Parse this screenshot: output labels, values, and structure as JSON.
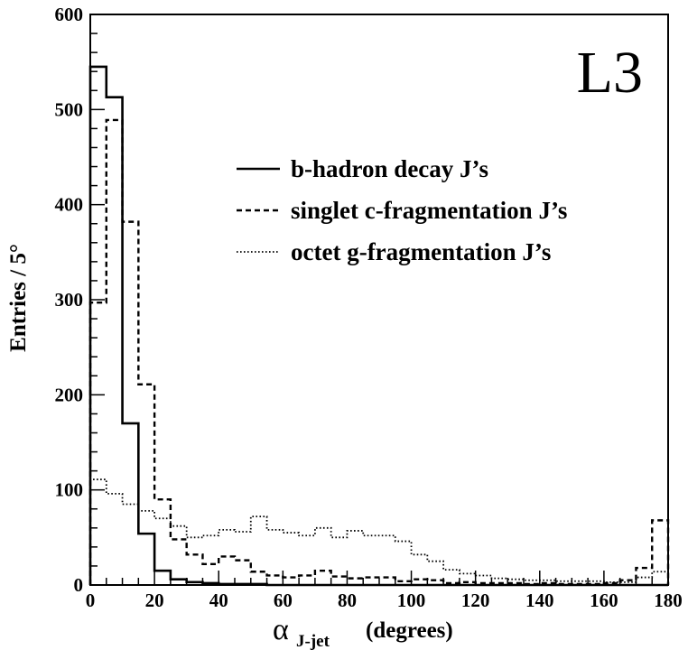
{
  "chart_data": {
    "type": "histogram",
    "label_mark": "L3",
    "ylabel": "Entries / 5°",
    "xlabel": {
      "symbol": "α",
      "subscript": "J-jet",
      "unit": "(degrees)"
    },
    "xlim": [
      0,
      180
    ],
    "ylim": [
      0,
      600
    ],
    "bin_width": 5,
    "x_ticks": [
      "0",
      "20",
      "40",
      "60",
      "80",
      "100",
      "120",
      "140",
      "160",
      "180"
    ],
    "y_ticks": [
      "0",
      "100",
      "200",
      "300",
      "400",
      "500",
      "600"
    ],
    "grid": false,
    "legend_position": "top-right",
    "series": [
      {
        "name": "b-hadron decay J’s",
        "line_style": "solid",
        "values": [
          545,
          513,
          170,
          54,
          15,
          6,
          3,
          2,
          1,
          1,
          1,
          0,
          0,
          0,
          0,
          0,
          0,
          0,
          0,
          0,
          0,
          0,
          0,
          0,
          0,
          0,
          0,
          0,
          0,
          0,
          0,
          0,
          0,
          0,
          0,
          0
        ]
      },
      {
        "name": "singlet c-fragmentation J’s",
        "line_style": "dashed",
        "values": [
          297,
          489,
          382,
          211,
          90,
          48,
          32,
          22,
          30,
          26,
          14,
          10,
          8,
          10,
          15,
          9,
          7,
          8,
          8,
          4,
          6,
          5,
          2,
          3,
          2,
          2,
          2,
          1,
          2,
          1,
          1,
          1,
          2,
          5,
          18,
          68
        ]
      },
      {
        "name": "octet g-fragmentation J’s",
        "line_style": "dotted",
        "values": [
          111,
          96,
          85,
          78,
          70,
          62,
          50,
          52,
          58,
          56,
          72,
          58,
          55,
          52,
          60,
          50,
          57,
          52,
          52,
          46,
          32,
          25,
          16,
          12,
          10,
          7,
          6,
          5,
          5,
          4,
          4,
          4,
          3,
          3,
          8,
          14
        ]
      }
    ]
  }
}
